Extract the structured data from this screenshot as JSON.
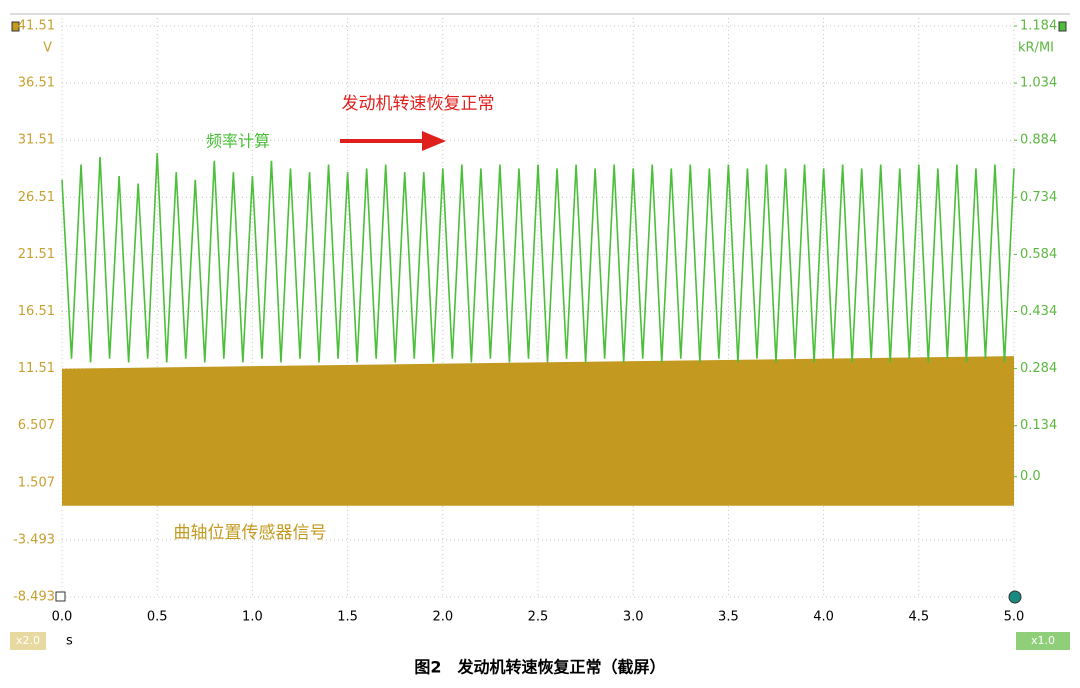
{
  "chart_data": {
    "type": "line",
    "title": "图2　发动机转速恢复正常（截屏）",
    "annotation": "发动机转速恢复正常",
    "ylabel": "V",
    "y2label": "kR/MI",
    "xlabel": "s",
    "left_scale_label": "x2.0",
    "right_scale_label": "x1.0",
    "xlim": [
      0,
      5
    ],
    "xticks": [
      {
        "value": 0,
        "label": "0.0"
      },
      0.5,
      {
        "value": 1,
        "label": "1.0"
      },
      1.5,
      {
        "value": 2,
        "label": "2.0"
      },
      2.5,
      {
        "value": 3,
        "label": "3.0"
      },
      3.5,
      {
        "value": 4,
        "label": "4.0"
      },
      4.5,
      {
        "value": 5,
        "label": "5.0"
      }
    ],
    "ylim": [
      -8.493,
      41.51
    ],
    "yticks": [
      41.51,
      36.51,
      31.51,
      26.51,
      21.51,
      16.51,
      11.51,
      6.507,
      1.507,
      -3.493,
      -8.493
    ],
    "y2lim": [
      -0.316,
      1.184
    ],
    "y2ticks": [
      1.184,
      1.034,
      0.884,
      0.734,
      0.584,
      0.434,
      0.284,
      0.134,
      {
        "value": 0,
        "label": "0.0"
      }
    ],
    "grid": true,
    "series": [
      {
        "name": "曲轴位置传感器信号",
        "color": "#c39a1f",
        "style": "band",
        "x": [
          0,
          5
        ],
        "values": [
          11.5,
          12.6
        ],
        "lower_values": [
          -0.5,
          -0.5
        ]
      },
      {
        "name": "频率计算",
        "color": "#4cbf3a",
        "axis": "y2",
        "x": [
          0,
          0.05,
          0.1,
          0.15,
          0.2,
          0.25,
          0.3,
          0.35,
          0.4,
          0.45,
          0.5,
          0.55,
          0.6,
          0.65,
          0.7,
          0.75,
          0.8,
          0.85,
          0.9,
          0.95,
          1,
          1.05,
          1.1,
          1.15,
          1.2,
          1.25,
          1.3,
          1.35,
          1.4,
          1.45,
          1.5,
          1.55,
          1.6,
          1.65,
          1.7,
          1.75,
          1.8,
          1.85,
          1.9,
          1.95,
          2,
          2.05,
          2.1,
          2.15,
          2.2,
          2.25,
          2.3,
          2.35,
          2.4,
          2.45,
          2.5,
          2.55,
          2.6,
          2.65,
          2.7,
          2.75,
          2.8,
          2.85,
          2.9,
          2.95,
          3,
          3.05,
          3.1,
          3.15,
          3.2,
          3.25,
          3.3,
          3.35,
          3.4,
          3.45,
          3.5,
          3.55,
          3.6,
          3.65,
          3.7,
          3.75,
          3.8,
          3.85,
          3.9,
          3.95,
          4,
          4.05,
          4.1,
          4.15,
          4.2,
          4.25,
          4.3,
          4.35,
          4.4,
          4.45,
          4.5,
          4.55,
          4.6,
          4.65,
          4.7,
          4.75,
          4.8,
          4.85,
          4.9,
          4.95,
          5
        ],
        "values": [
          0.78,
          0.31,
          0.82,
          0.3,
          0.84,
          0.31,
          0.79,
          0.3,
          0.77,
          0.31,
          0.85,
          0.3,
          0.8,
          0.31,
          0.78,
          0.3,
          0.83,
          0.31,
          0.8,
          0.3,
          0.79,
          0.31,
          0.83,
          0.3,
          0.81,
          0.31,
          0.8,
          0.3,
          0.82,
          0.31,
          0.8,
          0.3,
          0.81,
          0.31,
          0.82,
          0.3,
          0.8,
          0.31,
          0.8,
          0.3,
          0.81,
          0.31,
          0.82,
          0.3,
          0.81,
          0.31,
          0.82,
          0.3,
          0.81,
          0.31,
          0.82,
          0.3,
          0.81,
          0.31,
          0.82,
          0.3,
          0.81,
          0.31,
          0.82,
          0.3,
          0.81,
          0.31,
          0.82,
          0.3,
          0.81,
          0.31,
          0.82,
          0.3,
          0.81,
          0.31,
          0.82,
          0.3,
          0.81,
          0.31,
          0.82,
          0.3,
          0.81,
          0.31,
          0.82,
          0.3,
          0.81,
          0.31,
          0.82,
          0.3,
          0.81,
          0.31,
          0.82,
          0.3,
          0.81,
          0.31,
          0.82,
          0.3,
          0.81,
          0.31,
          0.82,
          0.3,
          0.81,
          0.31,
          0.82,
          0.3,
          0.81
        ]
      }
    ]
  }
}
